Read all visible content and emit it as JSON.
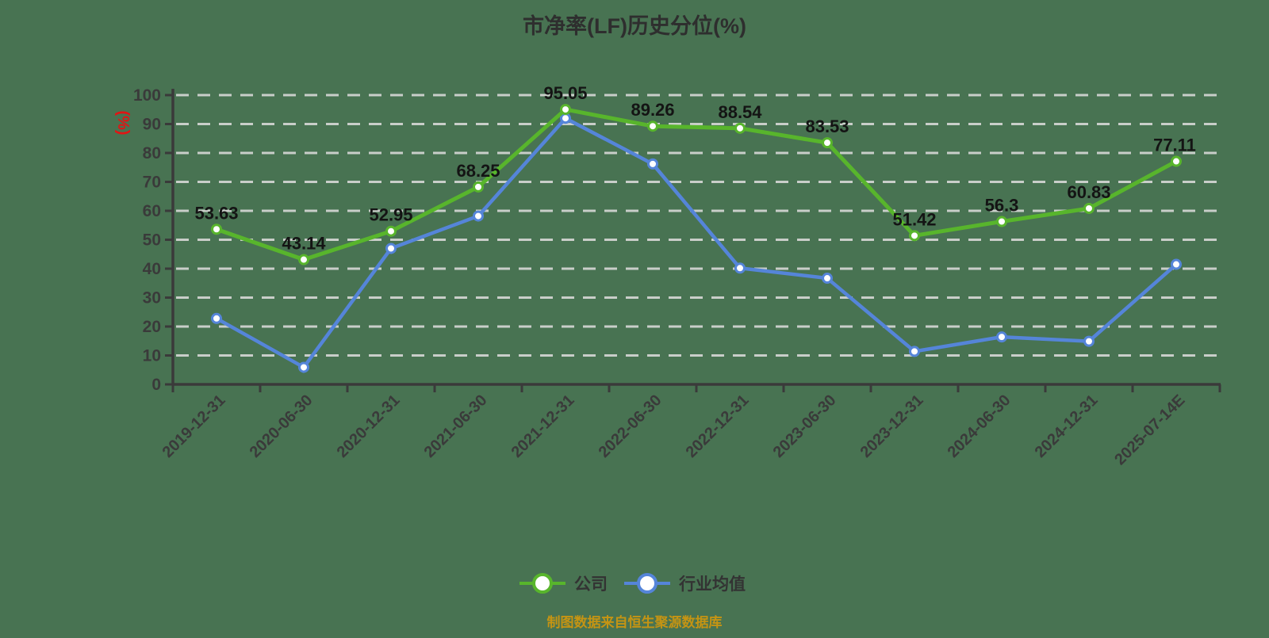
{
  "title": {
    "text": "市净率(LF)历史分位(%)",
    "color": "#2e2e2e"
  },
  "y_axis": {
    "unit_label": "(%)",
    "unit_color": "#e21414",
    "ticks": [
      0,
      10,
      20,
      30,
      40,
      50,
      60,
      70,
      80,
      90,
      100
    ],
    "tick_color": "#3a3a3a"
  },
  "x_axis": {
    "label_color": "#3a3a3a"
  },
  "legend": {
    "items": [
      {
        "label": "公司",
        "color": "#58b52c"
      },
      {
        "label": "行业均值",
        "color": "#5585d9"
      }
    ]
  },
  "source_note": {
    "text": "制图数据来自恒生聚源数据库",
    "color": "#c59413"
  },
  "style": {
    "background": "#487352",
    "gridline_color": "#c9cec9",
    "axis_color": "#3a3a3a",
    "marker_fill": "#ffffff",
    "data_label_color": "#141414"
  },
  "chart_data": {
    "type": "line",
    "categories": [
      "2019-12-31",
      "2020-06-30",
      "2020-12-31",
      "2021-06-30",
      "2021-12-31",
      "2022-06-30",
      "2022-12-31",
      "2023-06-30",
      "2023-12-31",
      "2024-06-30",
      "2024-12-31",
      "2025-07-14E"
    ],
    "series": [
      {
        "name": "行业均值",
        "color": "#5585d9",
        "values": [
          22.8,
          5.9,
          47.0,
          58.2,
          92.0,
          76.2,
          40.2,
          36.7,
          11.4,
          16.4,
          14.9,
          41.5
        ],
        "data_labels": false
      },
      {
        "name": "公司",
        "color": "#58b52c",
        "values": [
          53.63,
          43.14,
          52.95,
          68.25,
          95.05,
          89.26,
          88.54,
          83.53,
          51.42,
          56.3,
          60.83,
          77.11
        ],
        "data_labels": true
      }
    ],
    "ylim": [
      0,
      100
    ],
    "grid": "horizontal-dashed",
    "legend_position": "bottom",
    "title": "市净率(LF)历史分位(%)",
    "ylabel": "(%)"
  }
}
